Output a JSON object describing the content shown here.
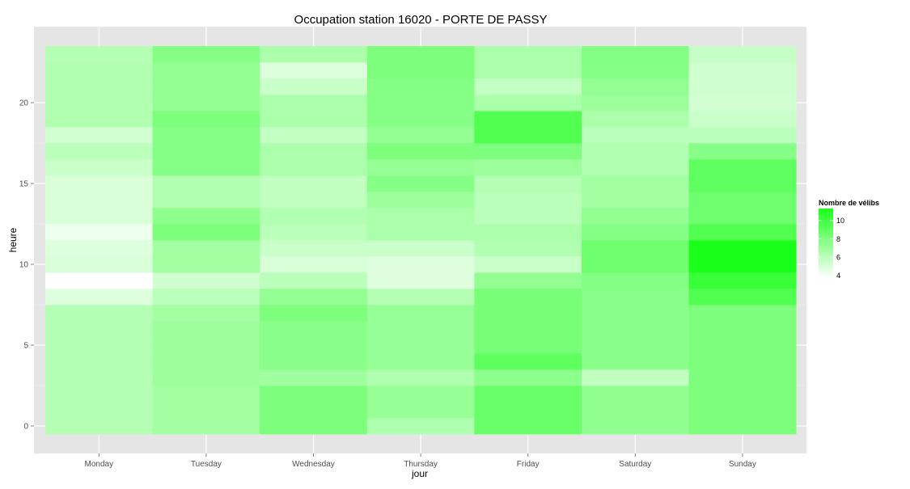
{
  "chart_data": {
    "type": "heatmap",
    "title": "Occupation station 16020 - PORTE DE PASSY",
    "xlabel": "jour",
    "ylabel": "heure",
    "x_categories": [
      "Monday",
      "Tuesday",
      "Wednesday",
      "Thursday",
      "Friday",
      "Saturday",
      "Sunday"
    ],
    "y_values": [
      0,
      1,
      2,
      3,
      4,
      5,
      6,
      7,
      8,
      9,
      10,
      11,
      12,
      13,
      14,
      15,
      16,
      17,
      18,
      19,
      20,
      21,
      22,
      23
    ],
    "y_ticks": [
      0,
      5,
      10,
      15,
      20
    ],
    "ylim": [
      -0.5,
      23.5
    ],
    "grid": true,
    "legend": {
      "title": "Nombre de vélibs",
      "placement": "right",
      "ticks": [
        4,
        6,
        8,
        10
      ],
      "range": [
        3.7,
        11.3
      ],
      "color_low": "#ffffff",
      "color_high": "#1aff1a"
    },
    "values": [
      [
        6.2,
        6.2,
        6.2,
        6.2,
        6.2,
        6.2,
        6.2,
        6.2,
        4.8,
        3.7,
        5.0,
        4.8,
        4.3,
        5.0,
        5.0,
        5.0,
        5.5,
        6.0,
        5.2,
        6.3,
        6.3,
        6.3,
        6.3,
        6.2
      ],
      [
        6.8,
        6.8,
        6.8,
        7.0,
        7.0,
        7.0,
        7.0,
        6.8,
        6.0,
        5.3,
        6.8,
        6.8,
        8.0,
        7.5,
        6.3,
        6.3,
        7.7,
        7.7,
        7.7,
        8.0,
        7.3,
        7.3,
        7.3,
        7.7
      ],
      [
        8.0,
        8.0,
        8.0,
        6.9,
        7.6,
        7.6,
        7.6,
        8.0,
        7.3,
        6.0,
        5.0,
        5.5,
        6.0,
        6.3,
        5.8,
        5.8,
        6.5,
        6.5,
        5.7,
        6.5,
        6.5,
        5.5,
        4.9,
        6.5
      ],
      [
        6.4,
        7.2,
        7.2,
        6.4,
        7.2,
        7.2,
        7.2,
        7.2,
        6.2,
        4.8,
        4.8,
        5.5,
        6.5,
        6.5,
        7.0,
        7.7,
        7.2,
        8.0,
        7.3,
        7.7,
        7.7,
        7.7,
        8.0,
        8.0
      ],
      [
        8.7,
        8.7,
        8.7,
        7.5,
        9.0,
        8.2,
        8.2,
        8.2,
        8.2,
        7.3,
        5.5,
        6.3,
        6.5,
        6.0,
        6.0,
        6.2,
        7.0,
        8.0,
        9.5,
        9.5,
        6.5,
        5.7,
        6.5,
        6.5
      ],
      [
        7.4,
        7.4,
        7.4,
        5.8,
        7.6,
        7.6,
        7.6,
        7.6,
        7.6,
        7.8,
        8.5,
        8.5,
        7.7,
        7.3,
        6.8,
        6.8,
        6.3,
        6.3,
        6.0,
        6.5,
        7.0,
        7.3,
        7.7,
        7.8
      ],
      [
        8.0,
        8.0,
        8.0,
        8.0,
        8.0,
        8.0,
        8.0,
        8.0,
        9.5,
        10.3,
        11.3,
        11.3,
        9.5,
        8.5,
        8.5,
        9.0,
        9.0,
        7.7,
        6.0,
        5.5,
        5.2,
        5.3,
        5.3,
        5.6
      ]
    ]
  }
}
